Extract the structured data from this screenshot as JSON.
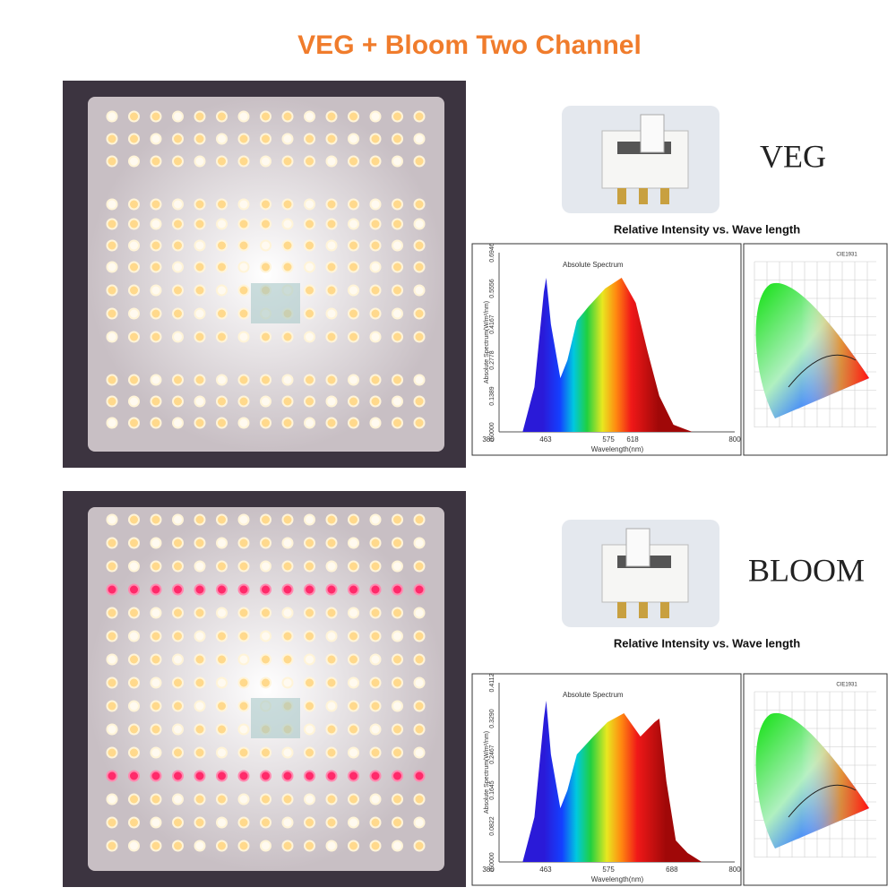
{
  "title": "VEG + Bloom Two Channel",
  "sections": [
    {
      "mode": "VEG",
      "caption": "Relative Intensity vs. Wave length",
      "spectrum": {
        "title": "Absolute Spectrum",
        "y_label": "Absolute Spectrum(W/m²/nm)",
        "x_label": "Wavelength(nm)",
        "x_ticks": [
          "380",
          "463",
          "575",
          "618",
          "800"
        ],
        "y_ticks": [
          "0.0000",
          "0.1389",
          "0.2778",
          "0.4167",
          "0.5556",
          "0.6946"
        ]
      },
      "cie": {
        "title": "CIE1931"
      }
    },
    {
      "mode": "BLOOM",
      "caption": "Relative Intensity vs. Wave length",
      "spectrum": {
        "title": "Absolute Spectrum",
        "y_label": "Absolute Spectrum(W/m²/nm)",
        "x_label": "Wavelength(nm)",
        "x_ticks": [
          "380",
          "463",
          "575",
          "688",
          "800"
        ],
        "y_ticks": [
          "0.0000",
          "0.0822",
          "0.1645",
          "0.2467",
          "0.3290",
          "0.4112"
        ]
      },
      "cie": {
        "title": "CIE1931"
      }
    }
  ]
}
